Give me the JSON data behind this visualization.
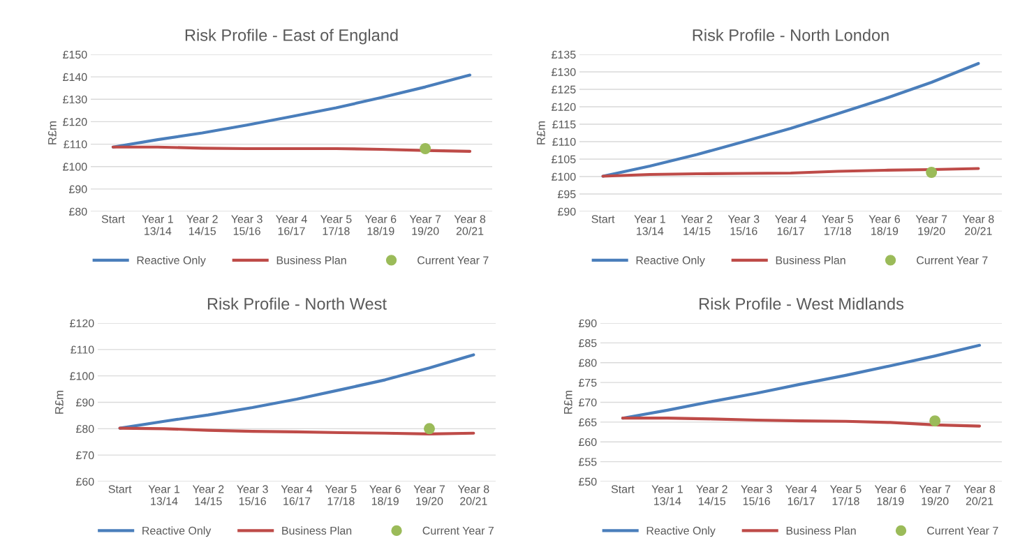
{
  "chart_data": [
    {
      "type": "line",
      "title": "Risk Profile - East of England",
      "ylabel": "R£m",
      "categories": [
        "Start",
        "Year 1\n13/14",
        "Year 2\n14/15",
        "Year 3\n15/16",
        "Year 4\n16/17",
        "Year 5\n17/18",
        "Year 6\n18/19",
        "Year 7\n19/20",
        "Year 8\n20/21"
      ],
      "series": [
        {
          "name": "Reactive Only",
          "color": "#4a7ebb",
          "values": [
            108.7,
            112,
            115,
            118.5,
            122.3,
            126.2,
            130.7,
            135.5,
            140.8
          ]
        },
        {
          "name": "Business Plan",
          "color": "#be4b48",
          "values": [
            108.7,
            108.7,
            108.2,
            108,
            108,
            108,
            107.7,
            107.2,
            106.8
          ]
        },
        {
          "name": "Current Year 7",
          "type": "scatter",
          "marker": "circle",
          "color": "#9bbb59",
          "values": [
            null,
            null,
            null,
            null,
            null,
            null,
            null,
            108,
            null
          ]
        }
      ],
      "ylim": [
        80,
        150
      ],
      "yticks": [
        {
          "value": 80,
          "label": "£80"
        },
        {
          "value": 90,
          "label": "£90"
        },
        {
          "value": 100,
          "label": "£100"
        },
        {
          "value": 110,
          "label": "£110"
        },
        {
          "value": 120,
          "label": "£120"
        },
        {
          "value": 130,
          "label": "£130"
        },
        {
          "value": 140,
          "label": "£140"
        },
        {
          "value": 150,
          "label": "£150"
        }
      ],
      "grid": "y",
      "legend": "bottom"
    },
    {
      "type": "line",
      "title": "Risk Profile - North London",
      "ylabel": "R£m",
      "categories": [
        "Start",
        "Year 1\n13/14",
        "Year 2\n14/15",
        "Year 3\n15/16",
        "Year 4\n16/17",
        "Year 5\n17/18",
        "Year 6\n18/19",
        "Year 7\n19/20",
        "Year 8\n20/21"
      ],
      "series": [
        {
          "name": "Reactive Only",
          "color": "#4a7ebb",
          "values": [
            100.1,
            103,
            106.3,
            110,
            113.8,
            118,
            122.3,
            127,
            132.4
          ]
        },
        {
          "name": "Business Plan",
          "color": "#be4b48",
          "values": [
            100.1,
            100.6,
            100.8,
            100.9,
            101,
            101.5,
            101.8,
            102,
            102.3
          ]
        },
        {
          "name": "Current Year 7",
          "type": "scatter",
          "marker": "circle",
          "color": "#9bbb59",
          "values": [
            null,
            null,
            null,
            null,
            null,
            null,
            null,
            101.2,
            null
          ]
        }
      ],
      "ylim": [
        90,
        135
      ],
      "yticks": [
        {
          "value": 90,
          "label": "£90"
        },
        {
          "value": 95,
          "label": "£95"
        },
        {
          "value": 100,
          "label": "£100"
        },
        {
          "value": 105,
          "label": "£105"
        },
        {
          "value": 110,
          "label": "£110"
        },
        {
          "value": 115,
          "label": "£115"
        },
        {
          "value": 120,
          "label": "£120"
        },
        {
          "value": 125,
          "label": "£125"
        },
        {
          "value": 130,
          "label": "£130"
        },
        {
          "value": 135,
          "label": "£135"
        }
      ],
      "grid": "y",
      "legend": "bottom"
    },
    {
      "type": "line",
      "title": "Risk Profile - North West",
      "ylabel": "R£m",
      "categories": [
        "Start",
        "Year 1\n13/14",
        "Year 2\n14/15",
        "Year 3\n15/16",
        "Year 4\n16/17",
        "Year 5\n17/18",
        "Year 6\n18/19",
        "Year 7\n19/20",
        "Year 8\n20/21"
      ],
      "series": [
        {
          "name": "Reactive Only",
          "color": "#4a7ebb",
          "values": [
            80.2,
            82.8,
            85.2,
            88,
            91.2,
            94.8,
            98.5,
            103,
            108
          ]
        },
        {
          "name": "Business Plan",
          "color": "#be4b48",
          "values": [
            80.2,
            80,
            79.4,
            79,
            78.8,
            78.5,
            78.3,
            78,
            78.3
          ]
        },
        {
          "name": "Current Year 7",
          "type": "scatter",
          "marker": "circle",
          "color": "#9bbb59",
          "values": [
            null,
            null,
            null,
            null,
            null,
            null,
            null,
            80,
            null
          ]
        }
      ],
      "ylim": [
        60,
        120
      ],
      "yticks": [
        {
          "value": 60,
          "label": "£60"
        },
        {
          "value": 70,
          "label": "£70"
        },
        {
          "value": 80,
          "label": "£80"
        },
        {
          "value": 90,
          "label": "£90"
        },
        {
          "value": 100,
          "label": "£100"
        },
        {
          "value": 110,
          "label": "£110"
        },
        {
          "value": 120,
          "label": "£120"
        }
      ],
      "grid": "y",
      "legend": "bottom"
    },
    {
      "type": "line",
      "title": "Risk Profile - West Midlands",
      "ylabel": "R£m",
      "categories": [
        "Start",
        "Year 1\n13/14",
        "Year 2\n14/15",
        "Year 3\n15/16",
        "Year 4\n16/17",
        "Year 5\n17/18",
        "Year 6\n18/19",
        "Year 7\n19/20",
        "Year 8\n20/21"
      ],
      "series": [
        {
          "name": "Reactive Only",
          "color": "#4a7ebb",
          "values": [
            66,
            68,
            70.2,
            72.3,
            74.6,
            76.8,
            79.2,
            81.7,
            84.4
          ]
        },
        {
          "name": "Business Plan",
          "color": "#be4b48",
          "values": [
            66,
            66,
            65.8,
            65.5,
            65.3,
            65.2,
            64.9,
            64.3,
            64
          ]
        },
        {
          "name": "Current Year 7",
          "type": "scatter",
          "marker": "circle",
          "color": "#9bbb59",
          "values": [
            null,
            null,
            null,
            null,
            null,
            null,
            null,
            65.3,
            null
          ]
        }
      ],
      "ylim": [
        50,
        90
      ],
      "yticks": [
        {
          "value": 50,
          "label": "£50"
        },
        {
          "value": 55,
          "label": "£55"
        },
        {
          "value": 60,
          "label": "£60"
        },
        {
          "value": 65,
          "label": "£65"
        },
        {
          "value": 70,
          "label": "£70"
        },
        {
          "value": 75,
          "label": "£75"
        },
        {
          "value": 80,
          "label": "£80"
        },
        {
          "value": 85,
          "label": "£85"
        },
        {
          "value": 90,
          "label": "£90"
        }
      ],
      "grid": "y",
      "legend": "bottom"
    }
  ]
}
